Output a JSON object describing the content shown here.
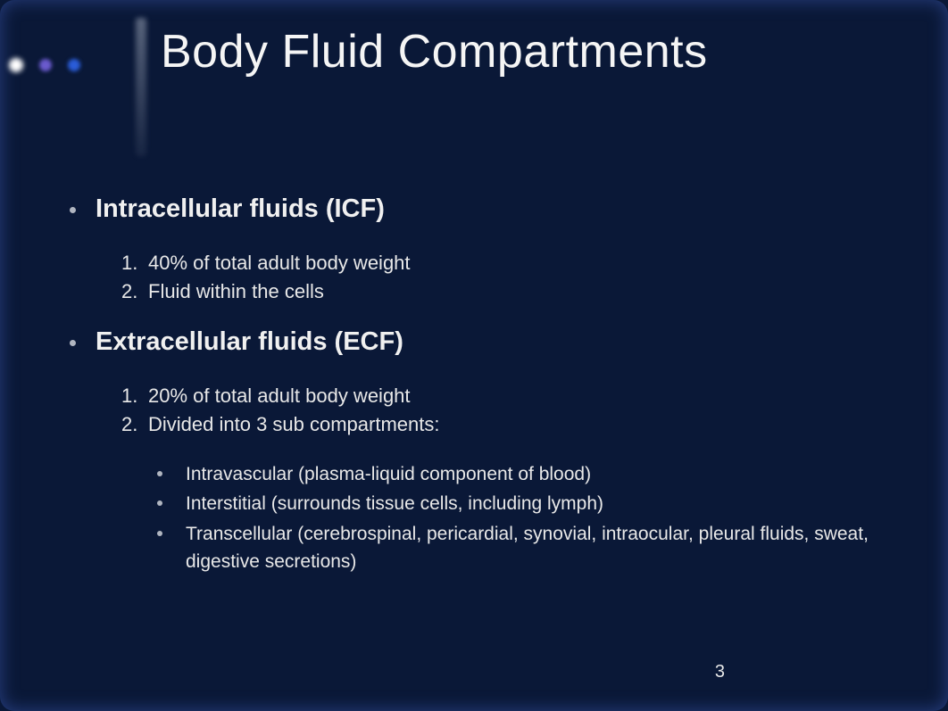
{
  "slide": {
    "title": "Body Fluid Compartments",
    "page_number": "3",
    "background_color": "#0a1837",
    "text_color": "#f0f0f0",
    "title_fontsize": 52,
    "heading_fontsize": 29,
    "body_fontsize": 22,
    "sub_fontsize": 21,
    "decorative_dots": [
      {
        "color": "#ffffff",
        "name": "white"
      },
      {
        "color": "#6a5acd",
        "name": "purple"
      },
      {
        "color": "#2a5cd8",
        "name": "blue"
      }
    ],
    "sections": [
      {
        "heading": "Intracellular fluids (ICF)",
        "items": [
          "40% of total adult body weight",
          "Fluid within the cells"
        ]
      },
      {
        "heading": "Extracellular fluids (ECF)",
        "items": [
          "20% of total adult body weight",
          "Divided into 3 sub compartments:"
        ],
        "sub_items": [
          "Intravascular (plasma-liquid component of blood)",
          "Interstitial (surrounds tissue cells, including lymph)",
          "Transcellular (cerebrospinal, pericardial, synovial, intraocular, pleural fluids, sweat, digestive secretions)"
        ]
      }
    ]
  }
}
